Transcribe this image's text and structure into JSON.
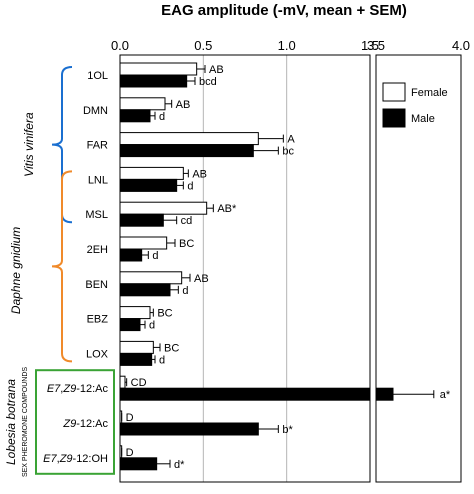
{
  "chart_data": {
    "type": "bar",
    "orientation": "horizontal",
    "title": "EAG amplitude (-mV, mean + SEM)",
    "axis_left": {
      "range": [
        0.0,
        1.5
      ],
      "ticks": [
        "0.0",
        "0.5",
        "1.0",
        "1.5"
      ],
      "tick_values": [
        0.0,
        0.5,
        1.0,
        1.5
      ]
    },
    "axis_right": {
      "range": [
        3.5,
        4.0
      ],
      "ticks": [
        "3.5",
        "4.0"
      ],
      "tick_values": [
        3.5,
        4.0
      ]
    },
    "grid": true,
    "legend": {
      "placement": "top-right",
      "entries": [
        {
          "name": "Female",
          "color": "#ffffff"
        },
        {
          "name": "Male",
          "color": "#000000"
        }
      ]
    },
    "series": [
      {
        "name": "Female",
        "color": "#ffffff"
      },
      {
        "name": "Male",
        "color": "#000000"
      }
    ],
    "categories": [
      "1OL",
      "DMN",
      "FAR",
      "LNL",
      "MSL",
      "2EH",
      "BEN",
      "EBZ",
      "LOX",
      "E7,Z9-12:Ac",
      "Z9-12:Ac",
      "E7,Z9-12:OH"
    ],
    "rows": [
      {
        "label": "1OL",
        "female": 0.46,
        "female_sem": 0.05,
        "female_sig": "AB",
        "male": 0.4,
        "male_sem": 0.05,
        "male_sig": "bcd"
      },
      {
        "label": "DMN",
        "female": 0.27,
        "female_sem": 0.04,
        "female_sig": "AB",
        "male": 0.18,
        "male_sem": 0.03,
        "male_sig": "d"
      },
      {
        "label": "FAR",
        "female": 0.83,
        "female_sem": 0.15,
        "female_sig": "A",
        "male": 0.8,
        "male_sem": 0.15,
        "male_sig": "bc"
      },
      {
        "label": "LNL",
        "female": 0.38,
        "female_sem": 0.03,
        "female_sig": "AB",
        "male": 0.34,
        "male_sem": 0.04,
        "male_sig": "d"
      },
      {
        "label": "MSL",
        "female": 0.52,
        "female_sem": 0.04,
        "female_sig": "AB*",
        "male": 0.26,
        "male_sem": 0.08,
        "male_sig": "cd"
      },
      {
        "label": "2EH",
        "female": 0.28,
        "female_sem": 0.05,
        "female_sig": "BC",
        "male": 0.13,
        "male_sem": 0.04,
        "male_sig": "d"
      },
      {
        "label": "BEN",
        "female": 0.37,
        "female_sem": 0.05,
        "female_sig": "AB",
        "male": 0.3,
        "male_sem": 0.05,
        "male_sig": "d"
      },
      {
        "label": "EBZ",
        "female": 0.18,
        "female_sem": 0.02,
        "female_sig": "BC",
        "male": 0.12,
        "male_sem": 0.03,
        "male_sig": "d"
      },
      {
        "label": "LOX",
        "female": 0.2,
        "female_sem": 0.04,
        "female_sig": "BC",
        "male": 0.19,
        "male_sem": 0.02,
        "male_sig": "d"
      },
      {
        "label": "E7,Z9-12:Ac",
        "female": 0.03,
        "female_sem": 0.01,
        "female_sig": "CD",
        "male": 3.6,
        "male_sem": 0.24,
        "male_sig": "a*"
      },
      {
        "label": "Z9-12:Ac",
        "female": 0.01,
        "female_sem": 0.0,
        "female_sig": "D",
        "male": 0.83,
        "male_sem": 0.12,
        "male_sig": "b*"
      },
      {
        "label": "E7,Z9-12:OH",
        "female": 0.01,
        "female_sem": 0.0,
        "female_sig": "D",
        "male": 0.22,
        "male_sem": 0.08,
        "male_sig": "d*"
      }
    ],
    "groups": [
      {
        "name": "Vitis vinifera",
        "from": "1OL",
        "to": "MSL",
        "color": "#1a6fd0"
      },
      {
        "name": "Daphne gnidium",
        "from": "LNL",
        "to": "LOX",
        "color": "#f08a2a"
      },
      {
        "name": "Lobesia botrana",
        "subtitle": "SEX PHEROMONE COMPOUNDS",
        "from": "E7,Z9-12:Ac",
        "to": "E7,Z9-12:OH",
        "color": "#3aa335"
      }
    ]
  }
}
